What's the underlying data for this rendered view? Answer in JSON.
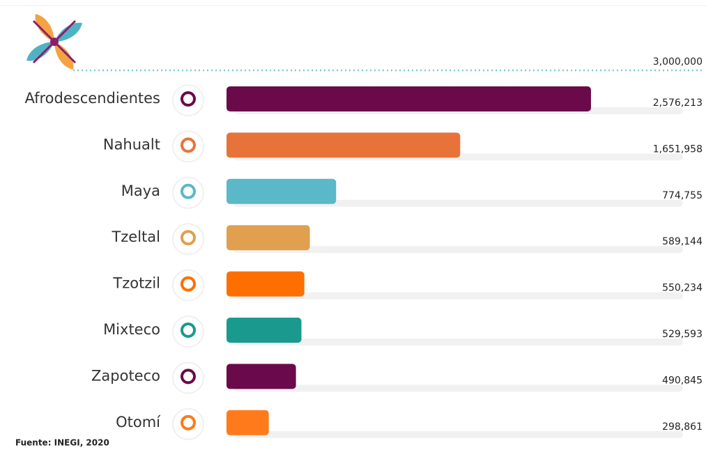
{
  "chart_data": {
    "type": "barh",
    "categories": [
      "Afrodescendientes",
      "Nahualt",
      "Maya",
      "Tzeltal",
      "Tzotzil",
      "Mixteco",
      "Zapoteco",
      "Otomí"
    ],
    "values": [
      2576213,
      1651958,
      774755,
      589144,
      550234,
      529593,
      490845,
      298861
    ],
    "value_labels": [
      "2,576,213",
      "1,651,958",
      "774,755",
      "589,144",
      "550,234",
      "529,593",
      "490,845",
      "298,861"
    ],
    "colors": [
      "#6b0a4a",
      "#e8733a",
      "#5bb8c8",
      "#e0a050",
      "#ff6f00",
      "#1a9a8e",
      "#6b0a4a",
      "#ff7a1a"
    ],
    "xlim": [
      0,
      3000000
    ],
    "xticks": [
      {
        "value": 3000000,
        "label": "3,000,000"
      }
    ],
    "source": "Fuente: INEGI, 2020"
  }
}
